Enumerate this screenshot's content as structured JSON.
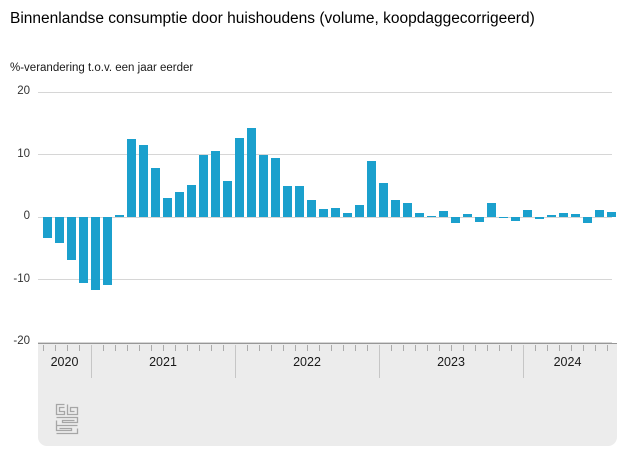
{
  "chart_data": {
    "type": "bar",
    "title": "Binnenlandse consumptie door huishoudens (volume, koopdaggecorrigeerd)",
    "subtitle": "%-verandering t.o.v. een jaar eerder",
    "ylabel": "%-verandering t.o.v. een jaar eerder",
    "ylim": [
      -20,
      20
    ],
    "yticks": [
      20,
      10,
      0,
      -10,
      -20
    ],
    "grid": true,
    "legend": "none",
    "bar_color": "#1ba0cd",
    "frequency": "monthly",
    "x_start_month": "2020-09",
    "x_end_month": "2024-08",
    "years": [
      {
        "label": "2020",
        "values": [
          -3.3,
          -4.1,
          -6.9,
          -10.5
        ]
      },
      {
        "label": "2021",
        "values": [
          -11.6,
          -10.9,
          0.4,
          12.5,
          11.5,
          7.8,
          3.1,
          4.0,
          5.2,
          9.9,
          10.6,
          5.8
        ]
      },
      {
        "label": "2022",
        "values": [
          12.7,
          14.2,
          9.9,
          9.5,
          4.9,
          5.0,
          2.8,
          1.3,
          1.4,
          0.7,
          1.9,
          9.0
        ]
      },
      {
        "label": "2023",
        "values": [
          5.4,
          2.7,
          2.3,
          0.7,
          0.2,
          0.9,
          -1.0,
          0.5,
          -0.8,
          2.3,
          -0.1,
          -0.7
        ]
      },
      {
        "label": "2024",
        "values": [
          1.2,
          -0.3,
          0.4,
          0.6,
          0.5,
          -1.0,
          1.1,
          0.8
        ]
      }
    ]
  },
  "branding": {
    "logo_name": "cbs-logo"
  },
  "colors": {
    "bar": "#1ba0cd",
    "gridline": "#d6d6d6",
    "axis_band_background": "#ececec",
    "axis_band_border": "#979797"
  }
}
